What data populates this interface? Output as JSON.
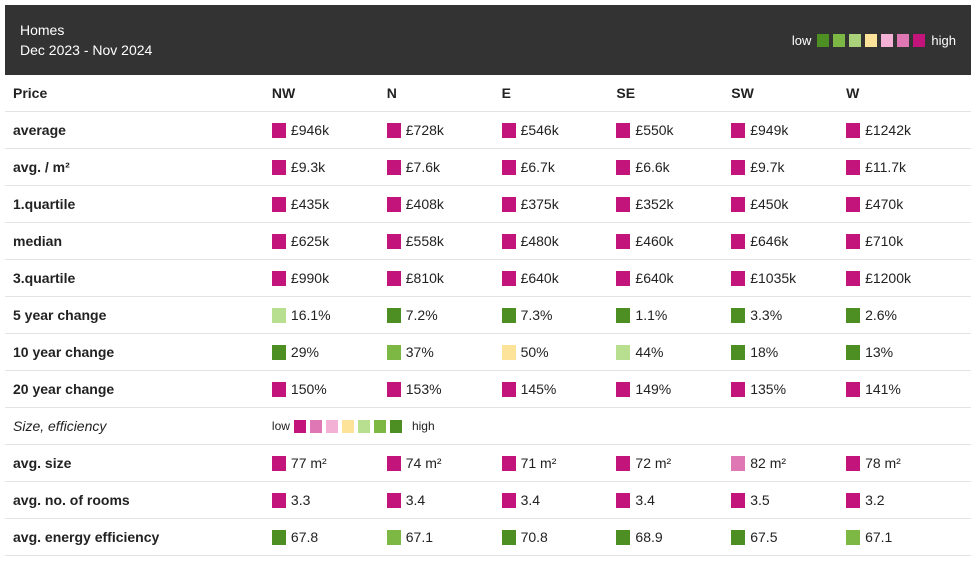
{
  "header": {
    "title": "Homes",
    "subtitle": "Dec 2023 - Nov 2024",
    "legend_low": "low",
    "legend_high": "high",
    "legend_colors": [
      "#4e8f23",
      "#7cb843",
      "#a9d27a",
      "#fde29a",
      "#f2b1d5",
      "#df77b5",
      "#c2147a"
    ]
  },
  "colors": {
    "dg": "#4e8f23",
    "mg": "#7cb843",
    "lg": "#b8de8f",
    "ye": "#fde29a",
    "lp": "#f2b1d5",
    "mp": "#df77b5",
    "dp": "#c2147a"
  },
  "table": {
    "header_label": "Price",
    "columns": [
      "NW",
      "N",
      "E",
      "SE",
      "SW",
      "W"
    ],
    "price_rows": [
      {
        "label": "average",
        "cells": [
          {
            "v": "£946k",
            "c": "dp"
          },
          {
            "v": "£728k",
            "c": "dp"
          },
          {
            "v": "£546k",
            "c": "dp"
          },
          {
            "v": "£550k",
            "c": "dp"
          },
          {
            "v": "£949k",
            "c": "dp"
          },
          {
            "v": "£1242k",
            "c": "dp"
          }
        ]
      },
      {
        "label": "avg. / m²",
        "cells": [
          {
            "v": "£9.3k",
            "c": "dp"
          },
          {
            "v": "£7.6k",
            "c": "dp"
          },
          {
            "v": "£6.7k",
            "c": "dp"
          },
          {
            "v": "£6.6k",
            "c": "dp"
          },
          {
            "v": "£9.7k",
            "c": "dp"
          },
          {
            "v": "£11.7k",
            "c": "dp"
          }
        ]
      },
      {
        "label": "1.quartile",
        "cells": [
          {
            "v": "£435k",
            "c": "dp"
          },
          {
            "v": "£408k",
            "c": "dp"
          },
          {
            "v": "£375k",
            "c": "dp"
          },
          {
            "v": "£352k",
            "c": "dp"
          },
          {
            "v": "£450k",
            "c": "dp"
          },
          {
            "v": "£470k",
            "c": "dp"
          }
        ]
      },
      {
        "label": "median",
        "cells": [
          {
            "v": "£625k",
            "c": "dp"
          },
          {
            "v": "£558k",
            "c": "dp"
          },
          {
            "v": "£480k",
            "c": "dp"
          },
          {
            "v": "£460k",
            "c": "dp"
          },
          {
            "v": "£646k",
            "c": "dp"
          },
          {
            "v": "£710k",
            "c": "dp"
          }
        ]
      },
      {
        "label": "3.quartile",
        "cells": [
          {
            "v": "£990k",
            "c": "dp"
          },
          {
            "v": "£810k",
            "c": "dp"
          },
          {
            "v": "£640k",
            "c": "dp"
          },
          {
            "v": "£640k",
            "c": "dp"
          },
          {
            "v": "£1035k",
            "c": "dp"
          },
          {
            "v": "£1200k",
            "c": "dp"
          }
        ]
      },
      {
        "label": "5 year change",
        "cells": [
          {
            "v": "16.1%",
            "c": "lg"
          },
          {
            "v": "7.2%",
            "c": "dg"
          },
          {
            "v": "7.3%",
            "c": "dg"
          },
          {
            "v": "1.1%",
            "c": "dg"
          },
          {
            "v": "3.3%",
            "c": "dg"
          },
          {
            "v": "2.6%",
            "c": "dg"
          }
        ]
      },
      {
        "label": "10 year change",
        "cells": [
          {
            "v": "29%",
            "c": "dg"
          },
          {
            "v": "37%",
            "c": "mg"
          },
          {
            "v": "50%",
            "c": "ye"
          },
          {
            "v": "44%",
            "c": "lg"
          },
          {
            "v": "18%",
            "c": "dg"
          },
          {
            "v": "13%",
            "c": "dg"
          }
        ]
      },
      {
        "label": "20 year change",
        "cells": [
          {
            "v": "150%",
            "c": "dp"
          },
          {
            "v": "153%",
            "c": "dp"
          },
          {
            "v": "145%",
            "c": "dp"
          },
          {
            "v": "149%",
            "c": "dp"
          },
          {
            "v": "135%",
            "c": "dp"
          },
          {
            "v": "141%",
            "c": "dp"
          }
        ]
      }
    ],
    "size_section": {
      "label": "Size, efficiency",
      "legend_low": "low",
      "legend_high": "high",
      "legend_colors": [
        "#c2147a",
        "#df77b5",
        "#f2b1d5",
        "#fde29a",
        "#b8de8f",
        "#7cb843",
        "#4e8f23"
      ]
    },
    "size_rows": [
      {
        "label": "avg. size",
        "cells": [
          {
            "v": "77 m²",
            "c": "dp"
          },
          {
            "v": "74 m²",
            "c": "dp"
          },
          {
            "v": "71 m²",
            "c": "dp"
          },
          {
            "v": "72 m²",
            "c": "dp"
          },
          {
            "v": "82 m²",
            "c": "mp"
          },
          {
            "v": "78 m²",
            "c": "dp"
          }
        ]
      },
      {
        "label": "avg. no. of rooms",
        "cells": [
          {
            "v": "3.3",
            "c": "dp"
          },
          {
            "v": "3.4",
            "c": "dp"
          },
          {
            "v": "3.4",
            "c": "dp"
          },
          {
            "v": "3.4",
            "c": "dp"
          },
          {
            "v": "3.5",
            "c": "dp"
          },
          {
            "v": "3.2",
            "c": "dp"
          }
        ]
      },
      {
        "label": "avg. energy efficiency",
        "cells": [
          {
            "v": "67.8",
            "c": "dg"
          },
          {
            "v": "67.1",
            "c": "mg"
          },
          {
            "v": "70.8",
            "c": "dg"
          },
          {
            "v": "68.9",
            "c": "dg"
          },
          {
            "v": "67.5",
            "c": "dg"
          },
          {
            "v": "67.1",
            "c": "mg"
          }
        ]
      }
    ]
  }
}
